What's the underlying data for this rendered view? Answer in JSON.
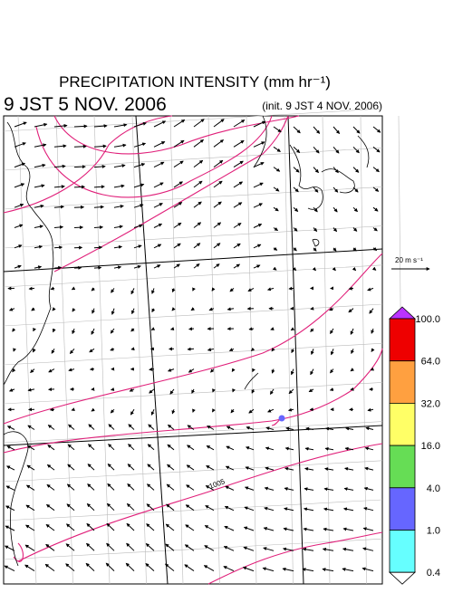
{
  "header": {
    "title": "PRECIPITATION INTENSITY (mm hr⁻¹)",
    "valid_time": "9 JST 5 NOV. 2006",
    "init_time": "(init. 9 JST 4 NOV. 2006)"
  },
  "map": {
    "contour_label": "1005",
    "wind_scale": "20 m s⁻¹"
  },
  "colorbar": {
    "levels": [
      {
        "value": 100,
        "label": "100.0"
      },
      {
        "value": 64,
        "label": "64.0"
      },
      {
        "value": 32,
        "label": "32.0"
      },
      {
        "value": 16,
        "label": "16.0"
      },
      {
        "value": 4,
        "label": "4.0"
      },
      {
        "value": 1,
        "label": "1.0"
      },
      {
        "value": 0.4,
        "label": "0.4"
      }
    ],
    "colors": [
      "#ee0000",
      "#ffa040",
      "#ffff66",
      "#66dd55",
      "#6666ff",
      "#66ffff"
    ],
    "over_color": "#bb33ff"
  }
}
